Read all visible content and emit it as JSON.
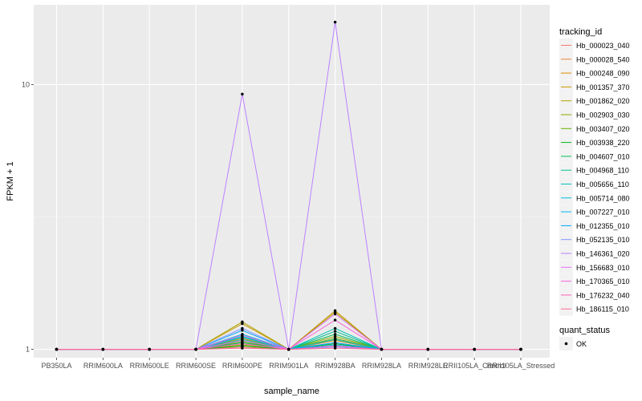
{
  "chart_data": {
    "type": "line",
    "xlabel": "sample_name",
    "ylabel": "FPKM + 1",
    "y_scale": "log10",
    "ylim": [
      0.93,
      20
    ],
    "y_ticks": [
      {
        "value": 1,
        "label": "1"
      },
      {
        "value": 10,
        "label": "10"
      }
    ],
    "categories": [
      "PB350LA",
      "RRIM600LA",
      "RRIM600LE",
      "RRIM600SE",
      "RRIM600PE",
      "RRIM901LA",
      "RRIM928BA",
      "RRIM928LA",
      "RRIM928LE",
      "RRII105LA_Control",
      "RRII105LA_Stressed"
    ],
    "grid": true,
    "legend": {
      "title": "tracking_id",
      "placement": "right"
    },
    "shape_legend": {
      "title": "quant_status",
      "entries": [
        "OK"
      ]
    },
    "series": [
      {
        "name": "Hb_000023_040",
        "color": "#F8766D",
        "values": [
          1,
          1,
          1,
          1,
          1.02,
          1,
          1.03,
          1,
          1,
          1,
          1
        ]
      },
      {
        "name": "Hb_000028_540",
        "color": "#EC8239",
        "values": [
          1,
          1,
          1,
          1,
          1.05,
          1,
          1.06,
          1,
          1,
          1,
          1
        ]
      },
      {
        "name": "Hb_000248_090",
        "color": "#DB8E00",
        "values": [
          1,
          1,
          1,
          1,
          1.1,
          1,
          1.08,
          1,
          1,
          1,
          1
        ]
      },
      {
        "name": "Hb_001357_370",
        "color": "#C79800",
        "values": [
          1,
          1,
          1,
          1,
          1.25,
          1,
          1.4,
          1,
          1,
          1,
          1
        ]
      },
      {
        "name": "Hb_001862_020",
        "color": "#AEA200",
        "values": [
          1,
          1,
          1,
          1,
          1.27,
          1,
          1.38,
          1,
          1,
          1,
          1
        ]
      },
      {
        "name": "Hb_002903_030",
        "color": "#8FAA00",
        "values": [
          1,
          1,
          1,
          1,
          1.04,
          1,
          1.12,
          1,
          1,
          1,
          1
        ]
      },
      {
        "name": "Hb_003407_020",
        "color": "#64B200",
        "values": [
          1,
          1,
          1,
          1,
          1.07,
          1,
          1.1,
          1,
          1,
          1,
          1
        ]
      },
      {
        "name": "Hb_003938_220",
        "color": "#00B81B",
        "values": [
          1,
          1,
          1,
          1,
          1.03,
          1,
          1.05,
          1,
          1,
          1,
          1
        ]
      },
      {
        "name": "Hb_004607_010",
        "color": "#00BD5C",
        "values": [
          1,
          1,
          1,
          1,
          1.06,
          1,
          1.14,
          1,
          1,
          1,
          1
        ]
      },
      {
        "name": "Hb_004968_110",
        "color": "#00C08E",
        "values": [
          1,
          1,
          1,
          1,
          1.09,
          1,
          1.17,
          1,
          1,
          1,
          1
        ]
      },
      {
        "name": "Hb_005656_110",
        "color": "#00C1B7",
        "values": [
          1,
          1,
          1,
          1,
          1.12,
          1,
          1.2,
          1,
          1,
          1,
          1
        ]
      },
      {
        "name": "Hb_005714_080",
        "color": "#00BDDC",
        "values": [
          1,
          1,
          1,
          1,
          1.11,
          1,
          1.09,
          1,
          1,
          1,
          1
        ]
      },
      {
        "name": "Hb_007227_010",
        "color": "#00B4F0",
        "values": [
          1,
          1,
          1,
          1,
          1.14,
          1,
          1.04,
          1,
          1,
          1,
          1
        ]
      },
      {
        "name": "Hb_012355_010",
        "color": "#00A5FF",
        "values": [
          1,
          1,
          1,
          1,
          1.18,
          1,
          1.06,
          1,
          1,
          1,
          1
        ]
      },
      {
        "name": "Hb_052135_010",
        "color": "#7F96FF",
        "values": [
          1,
          1,
          1,
          1,
          1.2,
          1,
          1.02,
          1,
          1,
          1,
          1
        ]
      },
      {
        "name": "Hb_146361_020",
        "color": "#BC81FF",
        "values": [
          1,
          1,
          1,
          1,
          9.2,
          1,
          17.2,
          1,
          1,
          1,
          1
        ]
      },
      {
        "name": "Hb_156683_010",
        "color": "#E26EF7",
        "values": [
          1,
          1,
          1,
          1,
          1.08,
          1,
          1.36,
          1,
          1,
          1,
          1
        ]
      },
      {
        "name": "Hb_170365_010",
        "color": "#F763DB",
        "values": [
          1,
          1,
          1,
          1,
          1.13,
          1,
          1.29,
          1,
          1,
          1,
          1
        ]
      },
      {
        "name": "Hb_176232_040",
        "color": "#FF62BC",
        "values": [
          1,
          1,
          1,
          1,
          1.05,
          1,
          1.03,
          1,
          1,
          1,
          1
        ]
      },
      {
        "name": "Hb_186115_010",
        "color": "#FF6C91",
        "values": [
          1,
          1,
          1,
          1,
          1.01,
          1,
          1.01,
          1,
          1,
          1,
          1
        ]
      }
    ]
  }
}
